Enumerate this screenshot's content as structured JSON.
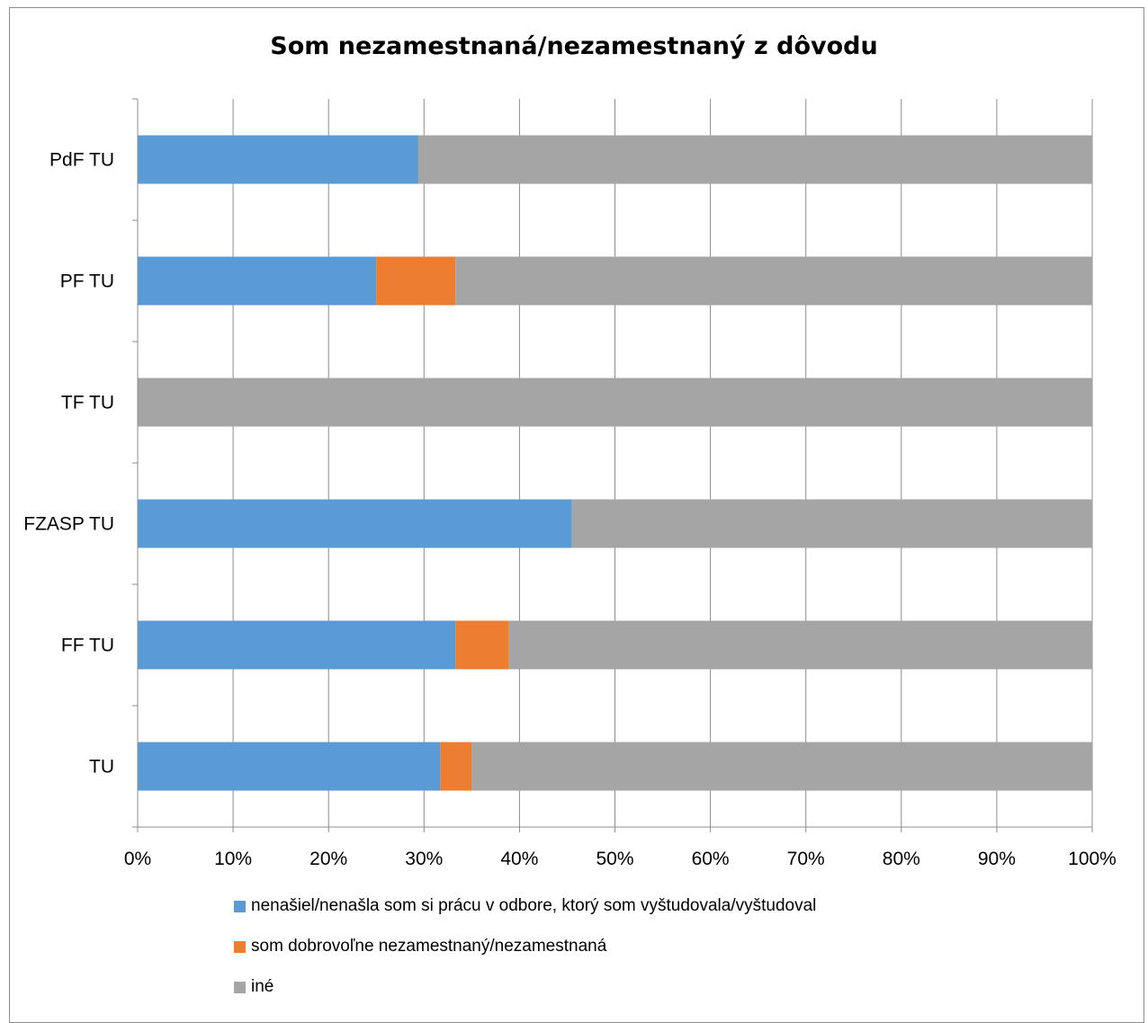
{
  "chart_data": {
    "type": "bar",
    "orientation": "horizontal",
    "stacked": true,
    "percent": true,
    "title": "Som nezamestnaná/nezamestnaný z dôvodu",
    "categories": [
      "PdF TU",
      "PF TU",
      "TF TU",
      "FZASP TU",
      "FF TU",
      "TU"
    ],
    "series": [
      {
        "name": "nenašiel/nenašla som si prácu v odbore, ktorý som vyštudovala/vyštudoval",
        "color": "#5B9BD5",
        "values": [
          29.4,
          25.0,
          0,
          45.5,
          33.3,
          31.7
        ]
      },
      {
        "name": "som dobrovoľne nezamestnaný/nezamestnaná",
        "color": "#ED7D31",
        "values": [
          0,
          8.3,
          0,
          0,
          5.6,
          3.3
        ]
      },
      {
        "name": "iné",
        "color": "#A5A5A5",
        "values": [
          70.6,
          66.7,
          100,
          54.5,
          61.1,
          65.0
        ]
      }
    ],
    "x_ticks": [
      "0%",
      "10%",
      "20%",
      "30%",
      "40%",
      "50%",
      "60%",
      "70%",
      "80%",
      "90%",
      "100%"
    ],
    "xlim": [
      0,
      100
    ],
    "grid": true,
    "legend": "bottom"
  }
}
